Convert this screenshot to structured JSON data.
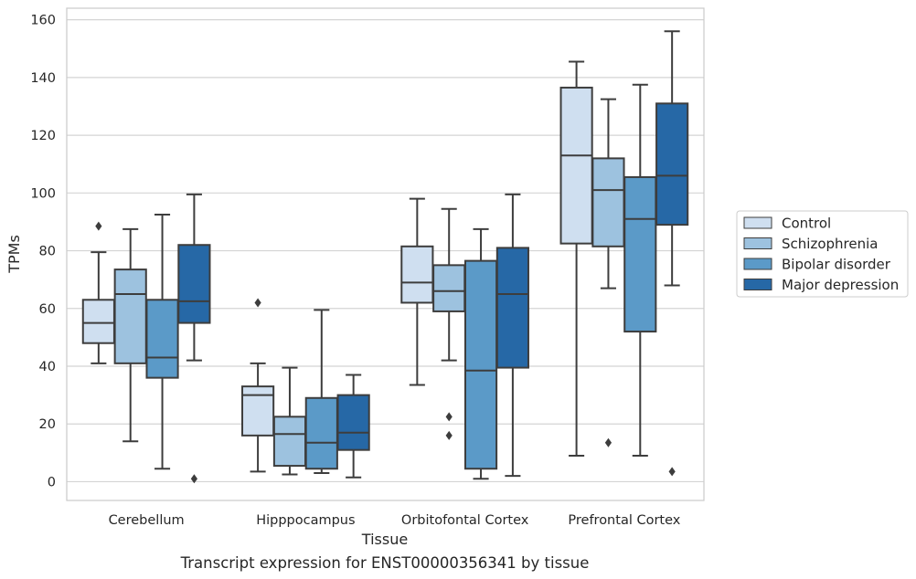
{
  "chart_data": {
    "type": "box",
    "xlabel": "Tissue",
    "ylabel": "TPMs",
    "caption": "Transcript expression for ENST00000356341 by tissue",
    "categories": [
      "Cerebellum",
      "Hipppocampus",
      "Orbitofontal Cortex",
      "Prefrontal Cortex"
    ],
    "ylim": [
      -6.5,
      164
    ],
    "yticks": [
      0,
      20,
      40,
      60,
      80,
      100,
      120,
      140,
      160
    ],
    "grid": "horizontal",
    "legend_position": "right",
    "series": [
      {
        "name": "Control",
        "color": "#cfdff0",
        "boxes": [
          {
            "whisker_low": 41,
            "q1": 48,
            "median": 55,
            "q3": 63,
            "whisker_high": 79.5,
            "outliers": [
              88.5
            ]
          },
          {
            "whisker_low": 3.5,
            "q1": 16,
            "median": 30,
            "q3": 33,
            "whisker_high": 41,
            "outliers": [
              62
            ]
          },
          {
            "whisker_low": 33.5,
            "q1": 62,
            "median": 69,
            "q3": 81.5,
            "whisker_high": 98,
            "outliers": []
          },
          {
            "whisker_low": 9,
            "q1": 82.5,
            "median": 113,
            "q3": 136.5,
            "whisker_high": 145.5,
            "outliers": []
          }
        ]
      },
      {
        "name": "Schizophrenia",
        "color": "#9dc2df",
        "boxes": [
          {
            "whisker_low": 14,
            "q1": 41,
            "median": 65,
            "q3": 73.5,
            "whisker_high": 87.5,
            "outliers": []
          },
          {
            "whisker_low": 2.5,
            "q1": 5.5,
            "median": 16.5,
            "q3": 22.5,
            "whisker_high": 39.5,
            "outliers": []
          },
          {
            "whisker_low": 42,
            "q1": 59,
            "median": 66,
            "q3": 75,
            "whisker_high": 94.5,
            "outliers": [
              22.5,
              16
            ]
          },
          {
            "whisker_low": 67,
            "q1": 81.5,
            "median": 101,
            "q3": 112,
            "whisker_high": 132.5,
            "outliers": [
              13.5
            ]
          }
        ]
      },
      {
        "name": "Bipolar disorder",
        "color": "#5b9ac8",
        "boxes": [
          {
            "whisker_low": 4.5,
            "q1": 36,
            "median": 43,
            "q3": 63,
            "whisker_high": 92.5,
            "outliers": []
          },
          {
            "whisker_low": 3,
            "q1": 4.5,
            "median": 13.5,
            "q3": 29,
            "whisker_high": 59.5,
            "outliers": []
          },
          {
            "whisker_low": 1,
            "q1": 4.5,
            "median": 38.5,
            "q3": 76.5,
            "whisker_high": 87.5,
            "outliers": []
          },
          {
            "whisker_low": 9,
            "q1": 52,
            "median": 91,
            "q3": 105.5,
            "whisker_high": 137.5,
            "outliers": []
          }
        ]
      },
      {
        "name": "Major depression",
        "color": "#2668a6",
        "boxes": [
          {
            "whisker_low": 42,
            "q1": 55,
            "median": 62.5,
            "q3": 82,
            "whisker_high": 99.5,
            "outliers": [
              1
            ]
          },
          {
            "whisker_low": 1.5,
            "q1": 11,
            "median": 17,
            "q3": 30,
            "whisker_high": 37,
            "outliers": []
          },
          {
            "whisker_low": 2,
            "q1": 39.5,
            "median": 65,
            "q3": 81,
            "whisker_high": 99.5,
            "outliers": []
          },
          {
            "whisker_low": 68,
            "q1": 89,
            "median": 106,
            "q3": 131,
            "whisker_high": 156,
            "outliers": [
              3.5
            ]
          }
        ]
      }
    ]
  }
}
